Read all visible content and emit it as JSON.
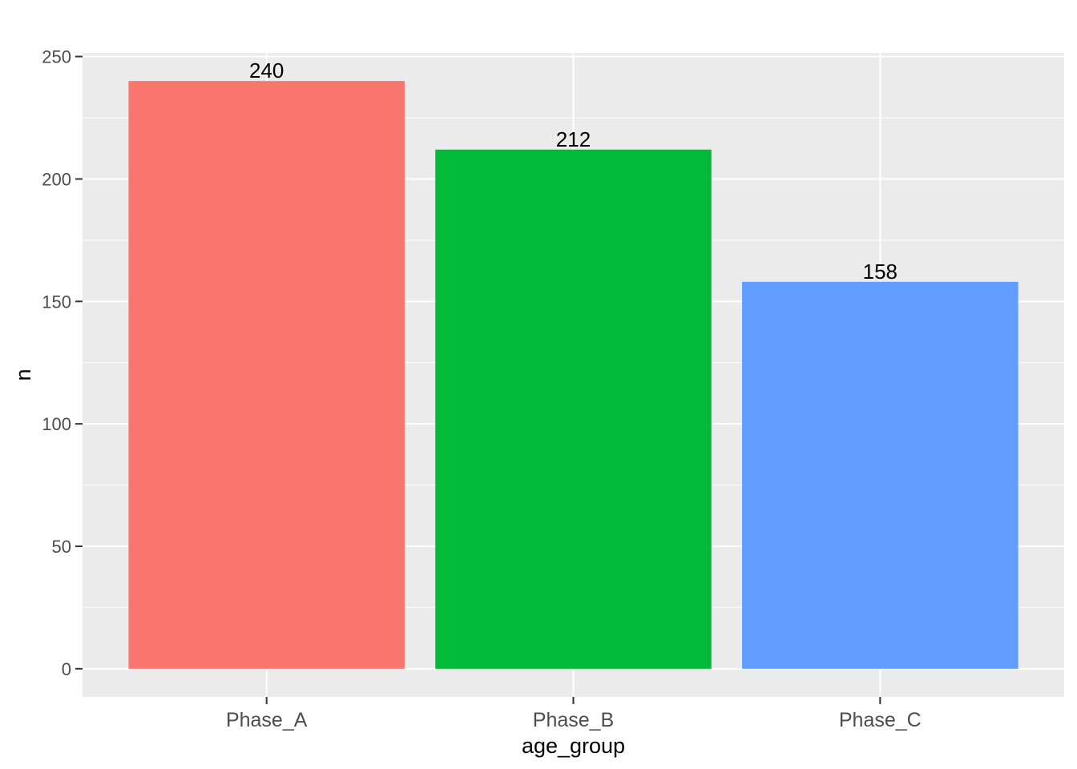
{
  "chart_data": {
    "type": "bar",
    "title": "",
    "xlabel": "age_group",
    "ylabel": "n",
    "categories": [
      "Phase_A",
      "Phase_B",
      "Phase_C"
    ],
    "values": [
      240,
      212,
      158
    ],
    "data_labels": [
      "240",
      "212",
      "158"
    ],
    "colors": [
      "#F8766D",
      "#00BA38",
      "#619CFF"
    ],
    "ylim": [
      -11.5,
      251.5
    ],
    "yticks": [
      0,
      50,
      100,
      150,
      200,
      250
    ],
    "ytick_labels": [
      "0",
      "50",
      "100",
      "150",
      "200",
      "250"
    ],
    "grid": true,
    "legend": "none",
    "panel_background": "#EBEBEB",
    "gridline_color": "#FFFFFF"
  }
}
